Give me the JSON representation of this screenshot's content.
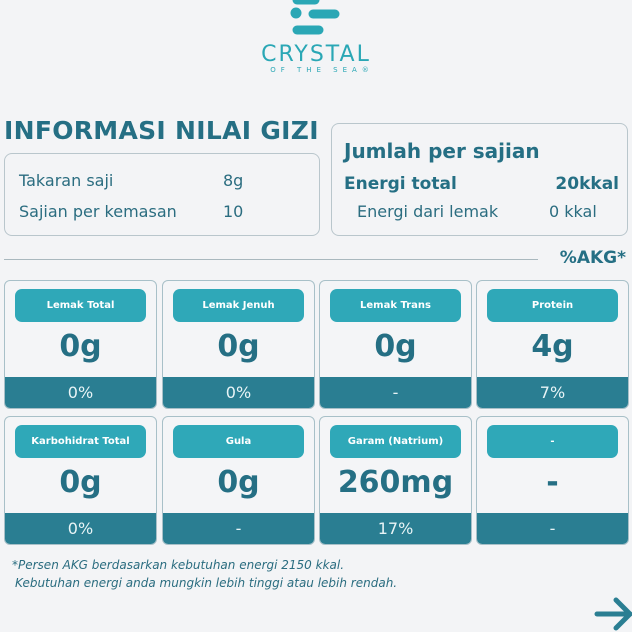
{
  "brand": {
    "name": "CRYSTAL",
    "tagline": "OF THE SEA®"
  },
  "title": "INFORMASI NILAI GIZI",
  "serving": [
    {
      "label": "Takaran saji",
      "value": "8g"
    },
    {
      "label": "Sajian per kemasan",
      "value": "10"
    }
  ],
  "per_serving": {
    "heading": "Jumlah per sajian",
    "energy_label": "Energi total",
    "energy_value": "20kkal",
    "fat_energy_label": "Energi dari lemak",
    "fat_energy_value": "0 kkal"
  },
  "akg_label": "%AKG*",
  "nutrients": [
    {
      "name": "Lemak Total",
      "amount": "0g",
      "akg": "0%"
    },
    {
      "name": "Lemak Jenuh",
      "amount": "0g",
      "akg": "0%"
    },
    {
      "name": "Lemak Trans",
      "amount": "0g",
      "akg": "-"
    },
    {
      "name": "Protein",
      "amount": "4g",
      "akg": "7%"
    },
    {
      "name": "Karbohidrat Total",
      "amount": "0g",
      "akg": "0%"
    },
    {
      "name": "Gula",
      "amount": "0g",
      "akg": "-"
    },
    {
      "name": "Garam (Natrium)",
      "amount": "260mg",
      "akg": "17%"
    },
    {
      "name": "-",
      "amount": "-",
      "akg": "-"
    }
  ],
  "footnote": [
    "*Persen AKG berdasarkan kebutuhan energi 2150 kkal.",
    "Kebutuhan energi anda mungkin lebih tinggi atau lebih rendah."
  ],
  "colors": {
    "primary": "#256f84",
    "accent": "#2fa8b8",
    "bar": "#2a7e92",
    "background": "#f3f4f6"
  }
}
